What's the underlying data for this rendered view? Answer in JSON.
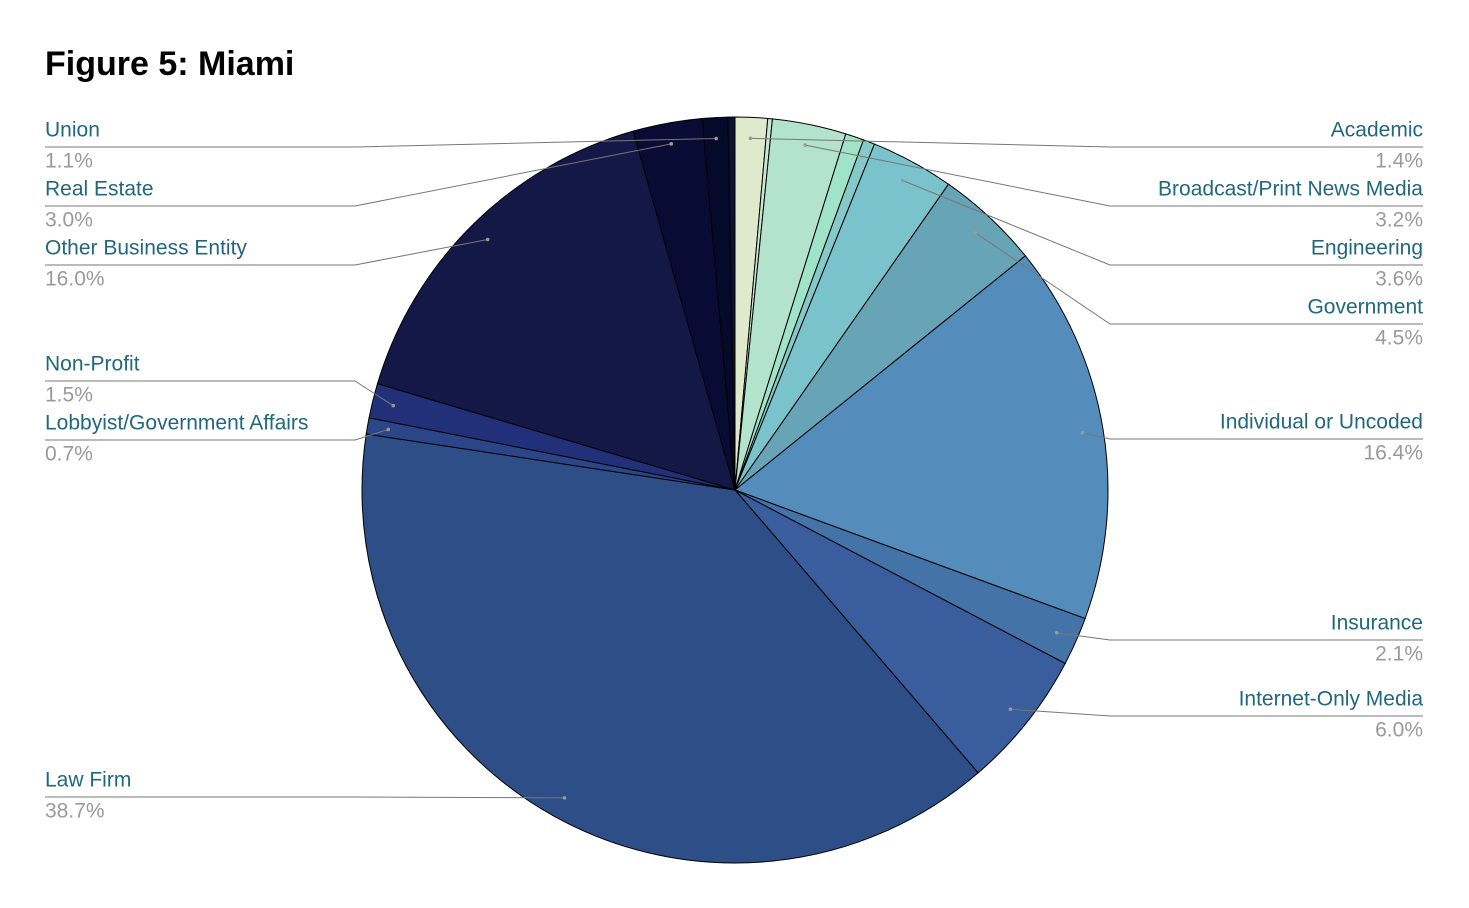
{
  "chart_data": {
    "type": "pie",
    "title": "Figure 5: Miami",
    "categories": [
      "Academic",
      null,
      "Broadcast/Print News Media",
      null,
      null,
      "Engineering",
      "Government",
      "Individual or Uncoded",
      "Insurance",
      "Internet-Only Media",
      "Law Firm",
      "Lobbyist/Government Affairs",
      "Non-Profit",
      "Other Business Entity",
      "Real Estate",
      "Union",
      null
    ],
    "values": [
      1.4,
      0.2,
      3.2,
      0.8,
      0.5,
      3.6,
      4.5,
      16.4,
      2.1,
      6.0,
      38.7,
      0.7,
      1.5,
      16.0,
      3.0,
      1.1,
      0.3
    ],
    "value_labels": [
      "1.4%",
      null,
      "3.2%",
      null,
      null,
      "3.6%",
      "4.5%",
      "16.4%",
      "2.1%",
      "6.0%",
      "38.7%",
      "0.7%",
      "1.5%",
      "16.0%",
      "3.0%",
      "1.1%",
      null
    ],
    "colors": [
      "#dfe9cc",
      "#c6e7d2",
      "#b3e2cd",
      "#9fe3c8",
      "#86c9c9",
      "#7bc3cc",
      "#66a4b6",
      "#548dbb",
      "#4473a8",
      "#3a5e9d",
      "#2e4e88",
      "#2a4688",
      "#22307a",
      "#141846",
      "#080c34",
      "#050a2a",
      "#0d1230"
    ]
  }
}
